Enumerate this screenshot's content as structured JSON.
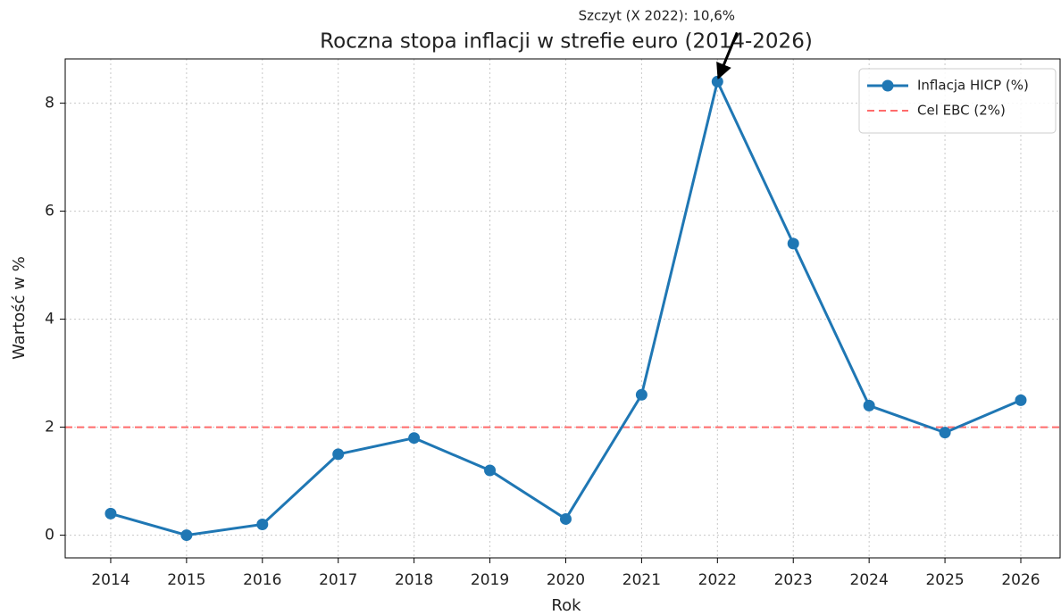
{
  "chart_data": {
    "type": "line",
    "title": "Roczna stopa inflacji w strefie euro (2014-2026)",
    "xlabel": "Rok",
    "ylabel": "Wartość w %",
    "x": [
      2014,
      2015,
      2016,
      2017,
      2018,
      2019,
      2020,
      2021,
      2022,
      2023,
      2024,
      2025,
      2026
    ],
    "series": [
      {
        "name": "Inflacja HICP (%)",
        "color": "#1f77b4",
        "values": [
          0.4,
          0.0,
          0.2,
          1.5,
          1.8,
          1.2,
          0.3,
          2.6,
          8.4,
          5.4,
          2.4,
          1.9,
          2.5
        ]
      }
    ],
    "reference_lines": [
      {
        "name": "Cel EBC (2%)",
        "value": 2,
        "color": "#ff6b6b"
      }
    ],
    "annotation": {
      "text": "Szczyt (X 2022): 10,6%",
      "x": 2022,
      "y": 8.4
    },
    "xlim": [
      2013.4,
      2026.53
    ],
    "ylim": [
      -0.42,
      8.82
    ],
    "xticks": [
      2014,
      2015,
      2016,
      2017,
      2018,
      2019,
      2020,
      2021,
      2022,
      2023,
      2024,
      2025,
      2026
    ],
    "yticks": [
      0,
      2,
      4,
      6,
      8
    ],
    "grid": true,
    "legend": "upper right"
  }
}
